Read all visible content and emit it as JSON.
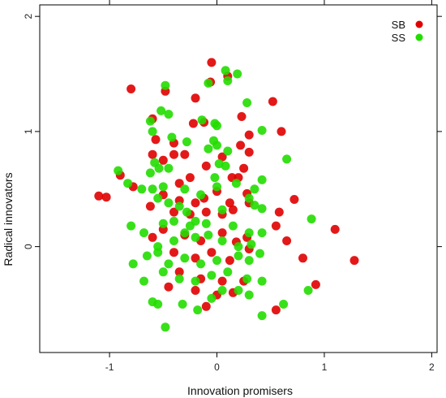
{
  "chart_data": {
    "type": "scatter",
    "xlabel": "Innovation promisers",
    "ylabel": "Radical innovators",
    "xlim": [
      -1.65,
      2.05
    ],
    "ylim": [
      -0.92,
      2.1
    ],
    "x_ticks": [
      -1,
      0,
      1,
      2
    ],
    "y_ticks": [
      0,
      1,
      2
    ],
    "grid": false,
    "legend_position": "top-right",
    "series": [
      {
        "name": "SB",
        "color": "#e00000",
        "points": [
          [
            -0.8,
            1.37
          ],
          [
            -0.48,
            1.35
          ],
          [
            -0.2,
            1.29
          ],
          [
            -0.05,
            1.6
          ],
          [
            -0.06,
            1.43
          ],
          [
            0.1,
            1.48
          ],
          [
            0.52,
            1.26
          ],
          [
            -0.6,
            1.11
          ],
          [
            -0.22,
            1.07
          ],
          [
            -0.12,
            1.08
          ],
          [
            0.23,
            1.13
          ],
          [
            0.6,
            1.0
          ],
          [
            0.3,
            0.97
          ],
          [
            -0.57,
            0.93
          ],
          [
            -0.4,
            0.9
          ],
          [
            0.22,
            0.88
          ],
          [
            0.3,
            0.82
          ],
          [
            -0.78,
            0.52
          ],
          [
            -0.6,
            0.8
          ],
          [
            -0.5,
            0.75
          ],
          [
            -0.4,
            0.8
          ],
          [
            -0.3,
            0.8
          ],
          [
            -0.1,
            0.7
          ],
          [
            0.05,
            0.78
          ],
          [
            0.14,
            0.6
          ],
          [
            -1.1,
            0.44
          ],
          [
            -1.03,
            0.43
          ],
          [
            -0.9,
            0.62
          ],
          [
            -0.35,
            0.55
          ],
          [
            -0.25,
            0.6
          ],
          [
            0.2,
            0.6
          ],
          [
            0.25,
            0.68
          ],
          [
            -0.5,
            0.45
          ],
          [
            -0.35,
            0.4
          ],
          [
            -0.2,
            0.38
          ],
          [
            -0.12,
            0.42
          ],
          [
            0.0,
            0.48
          ],
          [
            0.12,
            0.38
          ],
          [
            0.28,
            0.46
          ],
          [
            -0.62,
            0.35
          ],
          [
            -0.4,
            0.3
          ],
          [
            -0.25,
            0.28
          ],
          [
            -0.1,
            0.3
          ],
          [
            0.05,
            0.28
          ],
          [
            0.15,
            0.32
          ],
          [
            0.3,
            0.38
          ],
          [
            0.58,
            0.3
          ],
          [
            0.55,
            0.18
          ],
          [
            0.72,
            0.41
          ],
          [
            1.1,
            0.15
          ],
          [
            0.65,
            0.05
          ],
          [
            -0.6,
            0.08
          ],
          [
            -0.5,
            0.15
          ],
          [
            -0.3,
            0.1
          ],
          [
            -0.15,
            0.05
          ],
          [
            0.05,
            0.12
          ],
          [
            0.18,
            0.04
          ],
          [
            0.28,
            0.08
          ],
          [
            -0.4,
            -0.05
          ],
          [
            -0.2,
            -0.1
          ],
          [
            -0.05,
            -0.05
          ],
          [
            0.12,
            -0.12
          ],
          [
            0.3,
            -0.02
          ],
          [
            0.8,
            -0.1
          ],
          [
            1.28,
            -0.12
          ],
          [
            -0.35,
            -0.22
          ],
          [
            -0.15,
            -0.28
          ],
          [
            0.05,
            -0.3
          ],
          [
            0.25,
            -0.3
          ],
          [
            0.92,
            -0.33
          ],
          [
            0.55,
            -0.55
          ],
          [
            -0.45,
            -0.35
          ],
          [
            -0.2,
            -0.38
          ],
          [
            0.0,
            -0.42
          ],
          [
            0.15,
            -0.4
          ],
          [
            -0.1,
            -0.52
          ]
        ]
      },
      {
        "name": "SS",
        "color": "#22dd00",
        "points": [
          [
            0.08,
            1.53
          ],
          [
            0.19,
            1.5
          ],
          [
            0.1,
            1.44
          ],
          [
            -0.48,
            1.4
          ],
          [
            -0.08,
            1.42
          ],
          [
            0.28,
            1.25
          ],
          [
            -0.52,
            1.18
          ],
          [
            -0.62,
            1.09
          ],
          [
            -0.45,
            1.15
          ],
          [
            -0.14,
            1.1
          ],
          [
            -0.02,
            1.07
          ],
          [
            0.0,
            1.05
          ],
          [
            0.42,
            1.01
          ],
          [
            -0.6,
            1.0
          ],
          [
            -0.42,
            0.95
          ],
          [
            -0.28,
            0.91
          ],
          [
            -0.03,
            0.92
          ],
          [
            0.0,
            0.88
          ],
          [
            -0.08,
            0.85
          ],
          [
            0.1,
            0.83
          ],
          [
            -0.58,
            0.73
          ],
          [
            -0.54,
            0.68
          ],
          [
            -0.45,
            0.68
          ],
          [
            0.02,
            0.72
          ],
          [
            0.08,
            0.7
          ],
          [
            0.65,
            0.76
          ],
          [
            -0.02,
            0.6
          ],
          [
            -0.62,
            0.64
          ],
          [
            -0.92,
            0.66
          ],
          [
            -0.83,
            0.55
          ],
          [
            -0.7,
            0.5
          ],
          [
            -0.6,
            0.5
          ],
          [
            -0.5,
            0.52
          ],
          [
            0.35,
            0.5
          ],
          [
            0.42,
            0.58
          ],
          [
            -0.3,
            0.5
          ],
          [
            -0.15,
            0.45
          ],
          [
            0.0,
            0.52
          ],
          [
            0.18,
            0.55
          ],
          [
            0.3,
            0.42
          ],
          [
            -0.55,
            0.42
          ],
          [
            -0.45,
            0.38
          ],
          [
            -0.35,
            0.35
          ],
          [
            -0.28,
            0.3
          ],
          [
            -0.2,
            0.22
          ],
          [
            0.05,
            0.32
          ],
          [
            0.35,
            0.36
          ],
          [
            0.42,
            0.33
          ],
          [
            0.88,
            0.24
          ],
          [
            -0.8,
            0.18
          ],
          [
            -0.68,
            0.12
          ],
          [
            -0.5,
            0.2
          ],
          [
            -0.4,
            0.22
          ],
          [
            -0.25,
            0.18
          ],
          [
            -0.1,
            0.2
          ],
          [
            0.15,
            0.18
          ],
          [
            0.3,
            0.12
          ],
          [
            0.42,
            0.12
          ],
          [
            -0.55,
            0.0
          ],
          [
            -0.4,
            0.05
          ],
          [
            -0.3,
            0.12
          ],
          [
            -0.2,
            0.08
          ],
          [
            -0.08,
            0.1
          ],
          [
            0.05,
            0.05
          ],
          [
            0.2,
            0.0
          ],
          [
            0.32,
            0.02
          ],
          [
            -0.78,
            -0.15
          ],
          [
            -0.65,
            -0.08
          ],
          [
            -0.55,
            -0.05
          ],
          [
            -0.45,
            -0.15
          ],
          [
            -0.3,
            -0.1
          ],
          [
            -0.15,
            -0.15
          ],
          [
            0.0,
            -0.12
          ],
          [
            0.2,
            -0.08
          ],
          [
            0.3,
            -0.12
          ],
          [
            0.4,
            -0.06
          ],
          [
            -0.68,
            -0.3
          ],
          [
            -0.5,
            -0.22
          ],
          [
            -0.35,
            -0.28
          ],
          [
            -0.2,
            -0.3
          ],
          [
            -0.05,
            -0.25
          ],
          [
            0.1,
            -0.22
          ],
          [
            0.28,
            -0.28
          ],
          [
            0.42,
            -0.3
          ],
          [
            -0.6,
            -0.48
          ],
          [
            -0.55,
            -0.5
          ],
          [
            -0.32,
            -0.5
          ],
          [
            -0.18,
            -0.55
          ],
          [
            -0.05,
            -0.45
          ],
          [
            0.05,
            -0.38
          ],
          [
            0.2,
            -0.38
          ],
          [
            0.3,
            -0.42
          ],
          [
            0.42,
            -0.6
          ],
          [
            0.62,
            -0.5
          ],
          [
            0.85,
            -0.38
          ],
          [
            -0.48,
            -0.7
          ]
        ]
      }
    ]
  }
}
